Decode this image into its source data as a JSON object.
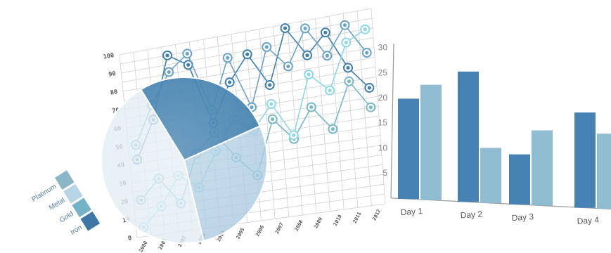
{
  "colors": {
    "dark_blue": "#3f7fae",
    "mid_blue": "#6aa3c6",
    "light_blue": "#9cc7db",
    "teal": "#79b8c8",
    "cyan": "#8ed8e6",
    "pale": "#d7e7f0",
    "grid": "#d0d0d0"
  },
  "chart_data": [
    {
      "type": "line",
      "x": [
        "2000",
        "2001",
        "2002",
        "2003",
        "2004",
        "2005",
        "2006",
        "2007",
        "2008",
        "2009",
        "2010",
        "2011",
        "2012"
      ],
      "ylim": [
        0,
        100
      ],
      "y_ticks": [
        "0",
        "10",
        "20",
        "30",
        "40",
        "50",
        "60",
        "70",
        "80",
        "90",
        "100"
      ],
      "grid": true,
      "series": [
        {
          "color": "#3f7fae",
          "values": [
            42,
            62,
            95,
            88,
            55,
            75,
            88,
            70,
            98,
            82,
            92,
            72,
            60
          ]
        },
        {
          "color": "#6aa3c6",
          "values": [
            50,
            70,
            86,
            94,
            62,
            88,
            60,
            90,
            78,
            96,
            80,
            94,
            78
          ]
        },
        {
          "color": "#79b8c8",
          "values": [
            20,
            30,
            15,
            40,
            50,
            35,
            24,
            52,
            40,
            55,
            42,
            65,
            50
          ]
        },
        {
          "color": "#8ed8e6",
          "values": [
            5,
            15,
            30,
            22,
            40,
            55,
            48,
            60,
            42,
            72,
            62,
            85,
            90
          ]
        }
      ]
    },
    {
      "type": "pie",
      "slices": [
        {
          "color": "#3f7fae",
          "value": 27
        },
        {
          "color": "#a9cbe0",
          "value": 28
        },
        {
          "color": "#e0ecf3",
          "value": 45
        }
      ]
    },
    {
      "type": "bar",
      "categories": [
        "Day 1",
        "Day 2",
        "Day 3",
        "Day 4"
      ],
      "ylim": [
        0,
        30
      ],
      "y_ticks": [
        "5",
        "10",
        "15",
        "20",
        "25",
        "30"
      ],
      "grid": false,
      "series": [
        {
          "color": "#4682b4",
          "values": [
            20,
            26,
            10,
            19
          ]
        },
        {
          "color": "#8fbcd0",
          "values": [
            23,
            11,
            15,
            15
          ]
        }
      ]
    }
  ],
  "legend": {
    "placement": "bottom-left",
    "items": [
      {
        "label": "Platinum",
        "color": "#8ab6c6"
      },
      {
        "label": "Metal",
        "color": "#b7d5e6"
      },
      {
        "label": "Gold",
        "color": "#74b2c8"
      },
      {
        "label": "Iron",
        "color": "#3e76a6"
      }
    ]
  }
}
